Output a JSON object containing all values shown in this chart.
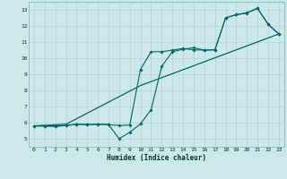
{
  "xlabel": "Humidex (Indice chaleur)",
  "xlim": [
    -0.5,
    23.5
  ],
  "ylim": [
    4.5,
    13.5
  ],
  "xticks": [
    0,
    1,
    2,
    3,
    4,
    5,
    6,
    7,
    8,
    9,
    10,
    11,
    12,
    13,
    14,
    15,
    16,
    17,
    18,
    19,
    20,
    21,
    22,
    23
  ],
  "yticks": [
    5,
    6,
    7,
    8,
    9,
    10,
    11,
    12,
    13
  ],
  "background_color": "#cce8e8",
  "grid_color": "#b8d8d8",
  "line_color": "#006666",
  "line1_x": [
    0,
    1,
    2,
    3,
    4,
    5,
    6,
    7,
    8,
    9,
    10,
    11,
    12,
    13,
    14,
    15,
    16,
    17,
    18,
    19,
    20,
    21,
    22,
    23
  ],
  "line1_y": [
    5.8,
    5.8,
    5.8,
    5.82,
    5.9,
    5.88,
    5.9,
    5.88,
    5.0,
    5.4,
    5.92,
    6.8,
    9.5,
    10.4,
    10.55,
    10.65,
    10.5,
    10.52,
    12.5,
    12.7,
    12.8,
    13.1,
    12.1,
    11.5
  ],
  "line2_x": [
    0,
    1,
    2,
    3,
    4,
    5,
    6,
    7,
    8,
    9,
    10,
    11,
    12,
    13,
    14,
    15,
    16,
    17,
    18,
    19,
    20,
    21,
    22,
    23
  ],
  "line2_y": [
    5.8,
    5.78,
    5.76,
    5.82,
    5.9,
    5.87,
    5.9,
    5.87,
    5.82,
    5.85,
    9.3,
    10.4,
    10.4,
    10.5,
    10.6,
    10.52,
    10.5,
    10.52,
    12.5,
    12.7,
    12.82,
    13.1,
    12.1,
    11.5
  ],
  "line3_x": [
    0,
    3,
    10,
    23
  ],
  "line3_y": [
    5.8,
    5.9,
    8.3,
    11.5
  ]
}
